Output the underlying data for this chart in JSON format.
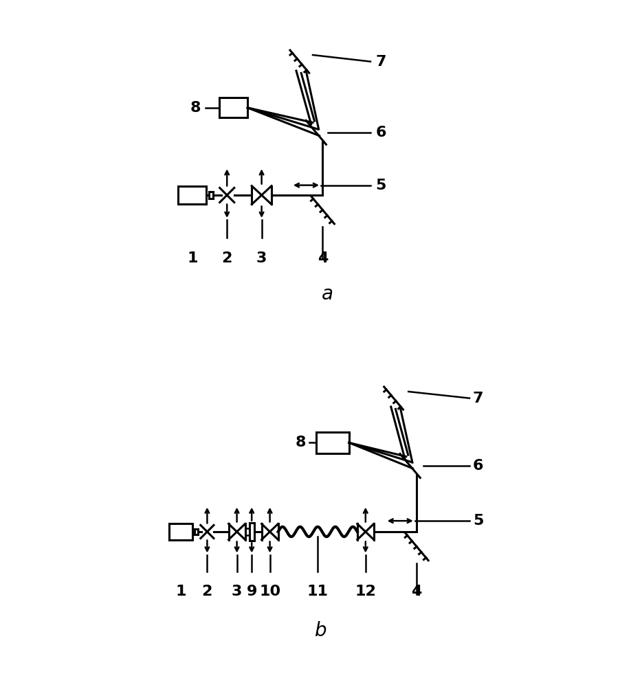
{
  "bg_color": "#ffffff",
  "lw": 1.8,
  "lw_thick": 2.2,
  "fig_width": 9.34,
  "fig_height": 10.0,
  "label_fontsize": 16,
  "sublabel_fontsize": 20
}
